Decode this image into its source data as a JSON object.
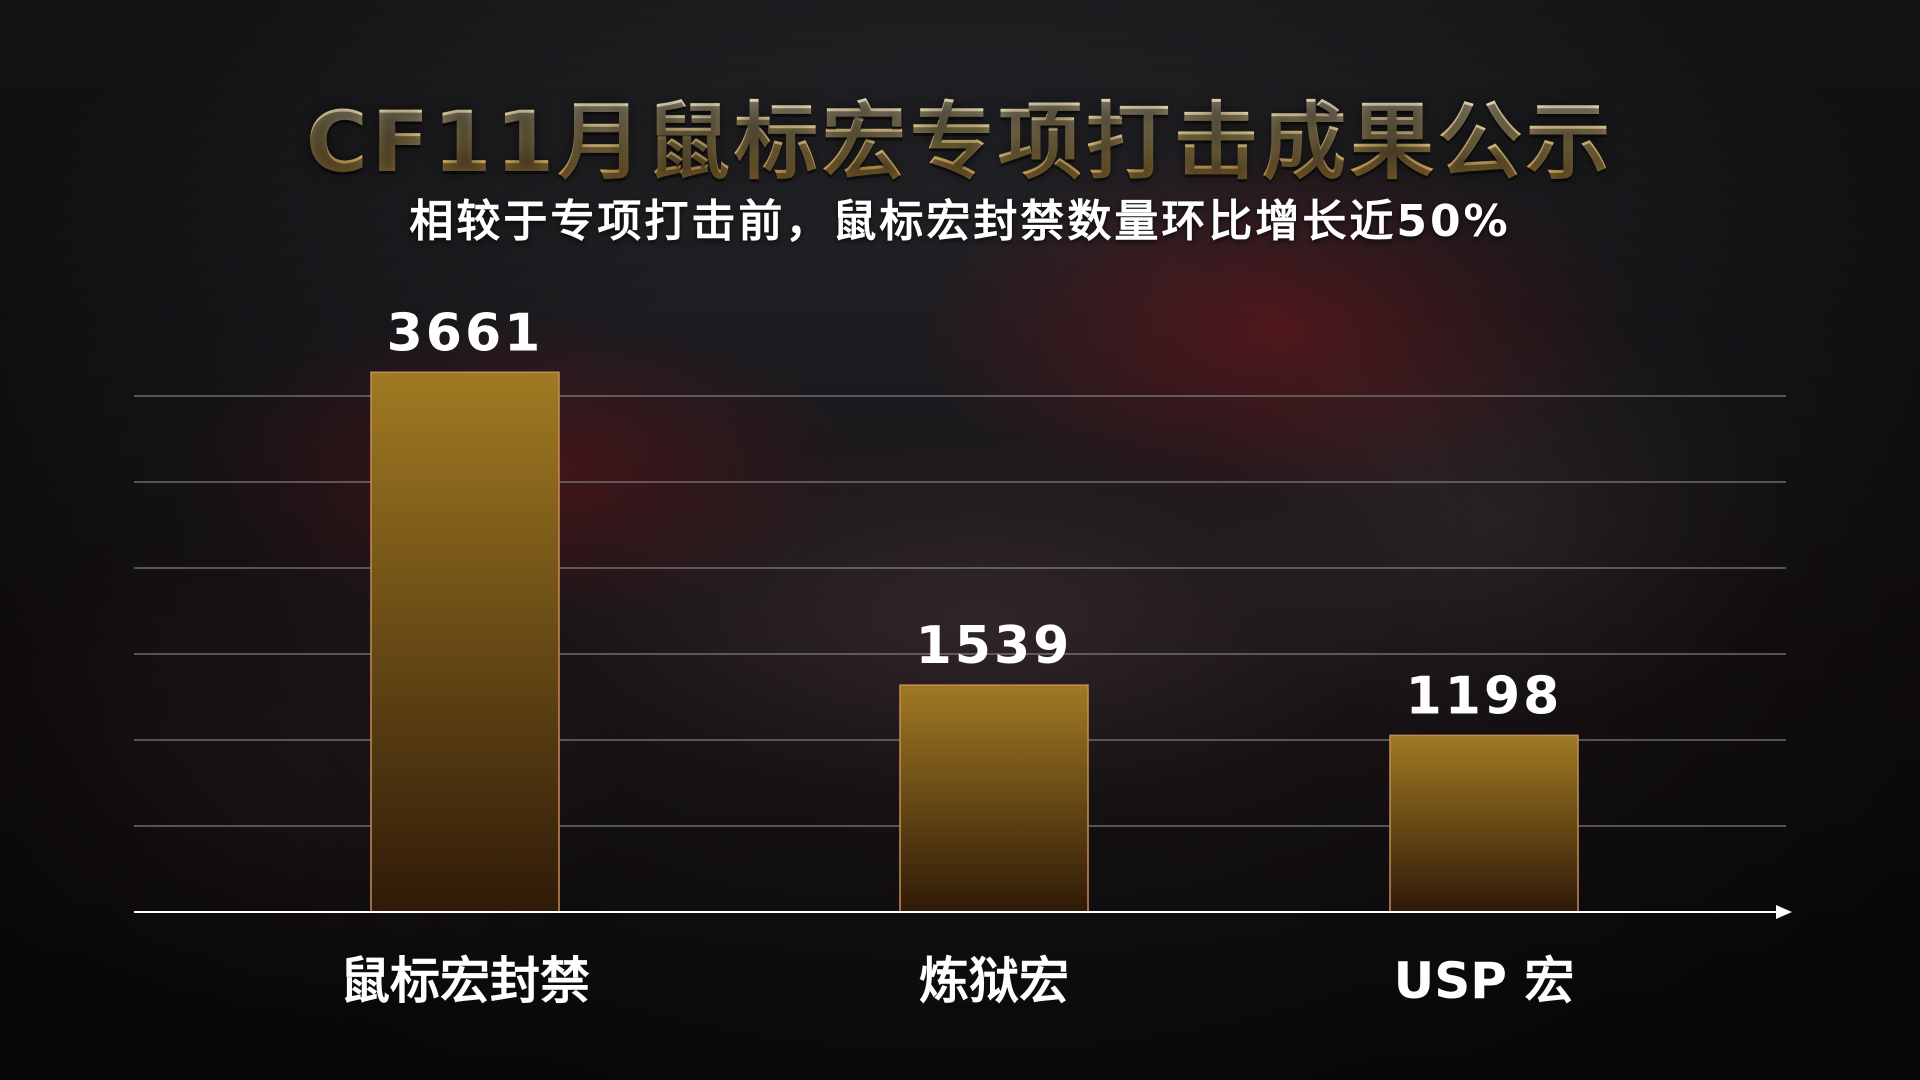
{
  "title": "CF11月鼠标宏专项打击成果公示",
  "subtitle": "相较于专项打击前，鼠标宏封禁数量环比增长近50%",
  "colors": {
    "bar_top": "#a07a22",
    "bar_bottom": "#2f1a08",
    "bar_edge": "#c88a5a",
    "gridline": "#8a8a8e",
    "axis": "#ffffff",
    "title_gold": "#f6d58a"
  },
  "chart_data": {
    "type": "bar",
    "categories": [
      "鼠标宏封禁",
      "炼狱宏",
      "USP 宏"
    ],
    "values": [
      3661,
      1539,
      1198
    ],
    "value_labels": [
      "3661",
      "1539",
      "1198"
    ],
    "title": "CF11月鼠标宏专项打击成果公示",
    "xlabel": "",
    "ylabel": "",
    "ylim": [
      0,
      3500
    ],
    "grid": true,
    "gridline_count": 6,
    "legend": "none"
  }
}
